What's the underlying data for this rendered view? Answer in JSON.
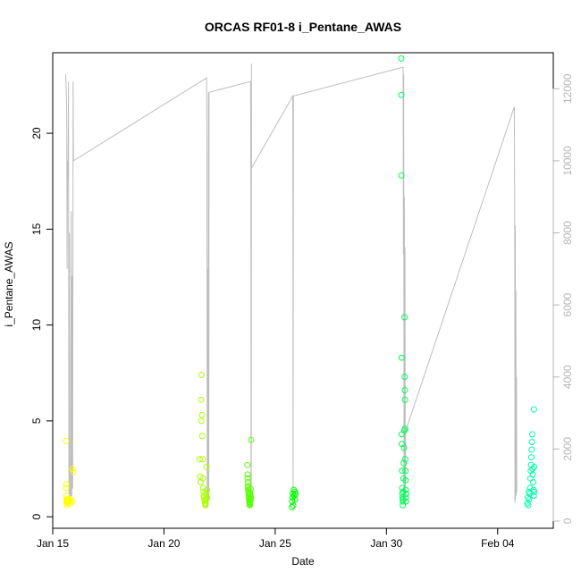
{
  "chart_data": {
    "type": "scatter",
    "title": "ORCAS RF01-8 i_Pentane_AWAS",
    "xlabel": "Date",
    "ylabel": "i_Pentane_AWAS",
    "xlim": [
      "2016-01-15T00:00",
      "2016-02-06T12:00"
    ],
    "ylim": [
      -0.6,
      24.2
    ],
    "ylim_right": [
      -200,
      13000
    ],
    "x_ticks": [
      {
        "date": "2016-01-15T00:00",
        "label": "Jan 15"
      },
      {
        "date": "2016-01-20T00:00",
        "label": "Jan 20"
      },
      {
        "date": "2016-01-25T00:00",
        "label": "Jan 25"
      },
      {
        "date": "2016-01-30T00:00",
        "label": "Jan 30"
      },
      {
        "date": "2016-02-04T00:00",
        "label": "Feb 04"
      }
    ],
    "y_ticks": [
      0,
      5,
      10,
      15,
      20
    ],
    "y_ticks_right": [
      0,
      2000,
      4000,
      6000,
      8000,
      10000,
      12000
    ],
    "grid": false,
    "legend": "none",
    "colors": {
      "RF01": "#FFFF00",
      "RF02": "#AAFF00",
      "RF03": "#55FF00",
      "RF04": "#00FF00",
      "RF05": "#00FF55",
      "RF06": "#00FFAA",
      "altitude_line": "#BEBEBE"
    },
    "series": [
      {
        "flight": "RF01",
        "points": [
          [
            "2016-01-15T14:20",
            3.95
          ],
          [
            "2016-01-15T14:25",
            1.7
          ],
          [
            "2016-01-15T14:30",
            1.5
          ],
          [
            "2016-01-15T14:40",
            1.1
          ],
          [
            "2016-01-15T14:50",
            0.9
          ],
          [
            "2016-01-15T15:00",
            0.7
          ],
          [
            "2016-01-15T15:10",
            0.6
          ],
          [
            "2016-01-15T15:20",
            0.8
          ],
          [
            "2016-01-15T15:40",
            0.9
          ],
          [
            "2016-01-15T16:00",
            0.75
          ],
          [
            "2016-01-15T16:30",
            0.8
          ],
          [
            "2016-01-15T17:00",
            0.9
          ],
          [
            "2016-01-15T18:00",
            0.85
          ],
          [
            "2016-01-15T19:00",
            0.7
          ],
          [
            "2016-01-15T20:00",
            0.9
          ],
          [
            "2016-01-15T21:00",
            0.8
          ],
          [
            "2016-01-15T21:30",
            2.5
          ],
          [
            "2016-01-15T22:00",
            2.35
          ]
        ]
      },
      {
        "flight": "RF02",
        "points": [
          [
            "2016-01-21T14:30",
            3.0
          ],
          [
            "2016-01-21T15:00",
            2.1
          ],
          [
            "2016-01-21T15:30",
            1.8
          ],
          [
            "2016-01-21T16:00",
            6.1
          ],
          [
            "2016-01-21T16:20",
            5.0
          ],
          [
            "2016-01-21T16:40",
            7.4
          ],
          [
            "2016-01-21T17:00",
            5.3
          ],
          [
            "2016-01-21T17:20",
            4.2
          ],
          [
            "2016-01-21T17:40",
            3.0
          ],
          [
            "2016-01-21T18:00",
            2.0
          ],
          [
            "2016-01-21T18:20",
            1.5
          ],
          [
            "2016-01-21T18:40",
            1.3
          ],
          [
            "2016-01-21T19:00",
            1.1
          ],
          [
            "2016-01-21T19:20",
            1.0
          ],
          [
            "2016-01-21T19:40",
            0.9
          ],
          [
            "2016-01-21T20:00",
            0.8
          ],
          [
            "2016-01-21T20:20",
            0.7
          ],
          [
            "2016-01-21T20:40",
            0.6
          ],
          [
            "2016-01-21T21:00",
            0.65
          ],
          [
            "2016-01-21T21:20",
            1.2
          ],
          [
            "2016-01-21T21:40",
            0.9
          ],
          [
            "2016-01-21T22:00",
            2.6
          ],
          [
            "2016-01-21T22:20",
            1.4
          ],
          [
            "2016-01-21T22:40",
            1.0
          ]
        ]
      },
      {
        "flight": "RF03",
        "points": [
          [
            "2016-01-23T18:00",
            2.7
          ],
          [
            "2016-01-23T18:10",
            2.2
          ],
          [
            "2016-01-23T18:20",
            2.0
          ],
          [
            "2016-01-23T18:30",
            1.8
          ],
          [
            "2016-01-23T18:40",
            1.6
          ],
          [
            "2016-01-23T18:50",
            1.5
          ],
          [
            "2016-01-23T19:00",
            1.4
          ],
          [
            "2016-01-23T19:10",
            1.3
          ],
          [
            "2016-01-23T19:20",
            1.2
          ],
          [
            "2016-01-23T19:30",
            1.1
          ],
          [
            "2016-01-23T19:40",
            1.0
          ],
          [
            "2016-01-23T19:50",
            0.9
          ],
          [
            "2016-01-23T20:00",
            0.8
          ],
          [
            "2016-01-23T20:10",
            0.75
          ],
          [
            "2016-01-23T20:20",
            0.7
          ],
          [
            "2016-01-23T20:30",
            0.65
          ],
          [
            "2016-01-23T20:40",
            0.6
          ],
          [
            "2016-01-23T20:50",
            1.15
          ],
          [
            "2016-01-23T21:00",
            1.25
          ],
          [
            "2016-01-23T21:10",
            0.95
          ],
          [
            "2016-01-23T21:20",
            0.85
          ],
          [
            "2016-01-23T21:30",
            1.45
          ],
          [
            "2016-01-23T21:40",
            1.0
          ],
          [
            "2016-01-23T22:00",
            4.0
          ]
        ]
      },
      {
        "flight": "RF04",
        "points": [
          [
            "2016-01-25T18:00",
            0.5
          ],
          [
            "2016-01-25T18:20",
            0.8
          ],
          [
            "2016-01-25T18:40",
            1.0
          ],
          [
            "2016-01-25T19:00",
            1.2
          ],
          [
            "2016-01-25T19:30",
            0.6
          ],
          [
            "2016-01-25T20:00",
            1.4
          ],
          [
            "2016-01-25T20:30",
            1.1
          ],
          [
            "2016-01-25T21:00",
            1.3
          ],
          [
            "2016-01-25T21:30",
            0.9
          ],
          [
            "2016-01-25T22:00",
            1.2
          ]
        ]
      },
      {
        "flight": "RF05",
        "points": [
          [
            "2016-01-30T16:00",
            23.9
          ],
          [
            "2016-01-30T16:05",
            22.0
          ],
          [
            "2016-01-30T16:10",
            17.8
          ],
          [
            "2016-01-30T16:20",
            8.3
          ],
          [
            "2016-01-30T16:30",
            4.3
          ],
          [
            "2016-01-30T16:40",
            3.8
          ],
          [
            "2016-01-30T16:50",
            2.4
          ],
          [
            "2016-01-30T17:00",
            1.5
          ],
          [
            "2016-01-30T17:10",
            1.2
          ],
          [
            "2016-01-30T17:20",
            1.0
          ],
          [
            "2016-01-30T17:30",
            0.8
          ],
          [
            "2016-01-30T17:40",
            0.6
          ],
          [
            "2016-01-30T17:50",
            0.9
          ],
          [
            "2016-01-30T18:00",
            1.3
          ],
          [
            "2016-01-30T18:20",
            2.0
          ],
          [
            "2016-01-30T18:40",
            2.8
          ],
          [
            "2016-01-30T19:00",
            3.6
          ],
          [
            "2016-01-30T19:20",
            4.5
          ],
          [
            "2016-01-30T19:30",
            10.4
          ],
          [
            "2016-01-30T19:40",
            7.3
          ],
          [
            "2016-01-30T19:50",
            6.6
          ],
          [
            "2016-01-30T20:00",
            6.1
          ],
          [
            "2016-01-30T20:10",
            4.6
          ],
          [
            "2016-01-30T20:20",
            3.0
          ],
          [
            "2016-01-30T20:30",
            2.4
          ],
          [
            "2016-01-30T20:40",
            1.9
          ],
          [
            "2016-01-30T20:50",
            1.4
          ],
          [
            "2016-01-30T21:00",
            1.0
          ],
          [
            "2016-01-30T21:10",
            0.8
          ],
          [
            "2016-01-30T21:20",
            1.2
          ]
        ]
      },
      {
        "flight": "RF06",
        "points": [
          [
            "2016-02-05T08:00",
            0.7
          ],
          [
            "2016-02-05T08:30",
            1.0
          ],
          [
            "2016-02-05T09:00",
            0.6
          ],
          [
            "2016-02-05T09:30",
            1.3
          ],
          [
            "2016-02-05T10:00",
            0.9
          ],
          [
            "2016-02-05T10:30",
            1.2
          ],
          [
            "2016-02-05T11:00",
            1.5
          ],
          [
            "2016-02-05T11:20",
            2.0
          ],
          [
            "2016-02-05T11:40",
            2.4
          ],
          [
            "2016-02-05T12:00",
            2.7
          ],
          [
            "2016-02-05T12:20",
            3.1
          ],
          [
            "2016-02-05T12:40",
            3.5
          ],
          [
            "2016-02-05T13:00",
            3.9
          ],
          [
            "2016-02-05T13:20",
            4.3
          ],
          [
            "2016-02-05T13:40",
            2.5
          ],
          [
            "2016-02-05T14:00",
            2.2
          ],
          [
            "2016-02-05T14:20",
            1.8
          ],
          [
            "2016-02-05T14:40",
            1.4
          ],
          [
            "2016-02-05T15:00",
            1.1
          ],
          [
            "2016-02-05T15:10",
            5.6
          ],
          [
            "2016-02-05T15:20",
            2.6
          ],
          [
            "2016-02-05T15:30",
            1.3
          ]
        ]
      }
    ],
    "altitude_line": [
      [
        "2016-01-15T14:00",
        12400
      ],
      [
        "2016-01-15T15:00",
        11500
      ],
      [
        "2016-01-15T15:30",
        7000
      ],
      [
        "2016-01-15T16:00",
        10000
      ],
      [
        "2016-01-15T16:30",
        9500
      ],
      [
        "2016-01-15T17:00",
        12200
      ],
      [
        "2016-01-15T17:30",
        600
      ],
      [
        "2016-01-15T18:00",
        8000
      ],
      [
        "2016-01-15T18:30",
        800
      ],
      [
        "2016-01-15T19:30",
        500
      ],
      [
        "2016-01-15T20:00",
        8600
      ],
      [
        "2016-01-15T20:30",
        700
      ],
      [
        "2016-01-15T21:00",
        6800
      ],
      [
        "2016-01-15T21:30",
        900
      ],
      [
        "2016-01-15T22:00",
        12200
      ],
      [
        "2016-01-15T22:20",
        10000
      ],
      [
        "2016-01-21T22:00",
        12300
      ],
      [
        "2016-01-21T22:20",
        10500
      ],
      [
        "2016-01-21T22:40",
        400
      ],
      [
        "2016-01-21T23:00",
        7000
      ],
      [
        "2016-01-21T23:20",
        500
      ],
      [
        "2016-01-21T23:40",
        3000
      ],
      [
        "2016-01-22T00:00",
        11900
      ],
      [
        "2016-01-22T00:20",
        600
      ],
      [
        "2016-01-22T00:40",
        11900
      ],
      [
        "2016-01-23T21:30",
        12200
      ],
      [
        "2016-01-23T21:40",
        9700
      ],
      [
        "2016-01-23T21:50",
        600
      ],
      [
        "2016-01-23T22:00",
        9000
      ],
      [
        "2016-01-23T22:10",
        700
      ],
      [
        "2016-01-23T22:20",
        12700
      ],
      [
        "2016-01-23T22:30",
        9800
      ],
      [
        "2016-01-25T19:00",
        11800
      ],
      [
        "2016-01-25T19:20",
        500
      ],
      [
        "2016-01-25T19:40",
        11800
      ],
      [
        "2016-01-30T18:00",
        12600
      ],
      [
        "2016-01-30T18:20",
        7400
      ],
      [
        "2016-01-30T18:40",
        12400
      ],
      [
        "2016-01-30T19:00",
        500
      ],
      [
        "2016-01-30T19:20",
        9000
      ],
      [
        "2016-01-30T19:40",
        600
      ],
      [
        "2016-01-30T20:00",
        7600
      ],
      [
        "2016-01-30T20:20",
        800
      ],
      [
        "2016-01-30T20:40",
        2500
      ],
      [
        "2016-02-04T18:00",
        11500
      ],
      [
        "2016-02-04T18:20",
        9000
      ],
      [
        "2016-02-04T18:40",
        500
      ],
      [
        "2016-02-04T19:00",
        8200
      ],
      [
        "2016-02-04T19:20",
        600
      ],
      [
        "2016-02-04T19:40",
        6400
      ],
      [
        "2016-02-04T20:00",
        700
      ],
      [
        "2016-02-04T20:20",
        4000
      ],
      [
        "2016-02-04T20:40",
        800
      ]
    ]
  }
}
